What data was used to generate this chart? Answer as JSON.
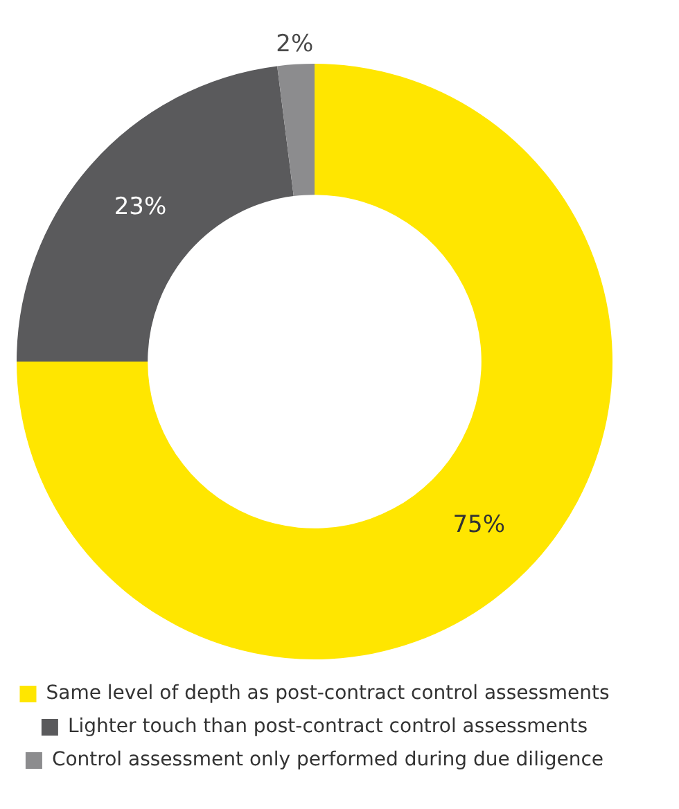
{
  "chart_data": {
    "type": "donut",
    "categories": [
      "Same level of depth as post-contract control assessments",
      "Lighter touch than post-contract control assessments",
      "Control assessment only performed during due diligence"
    ],
    "values": [
      75,
      23,
      2
    ],
    "value_labels": [
      "75%",
      "23%",
      "2%"
    ],
    "colors": [
      "#ffe600",
      "#5a5a5c",
      "#8c8c8e"
    ],
    "legend": "bottom"
  }
}
